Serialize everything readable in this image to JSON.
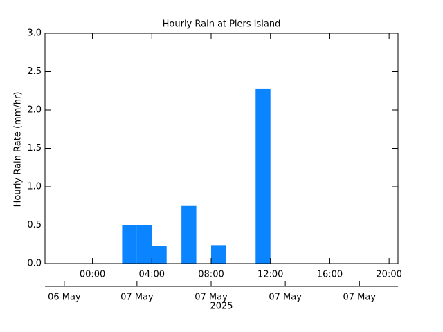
{
  "chart_data": {
    "type": "bar",
    "title": "Hourly Rain at Piers Island",
    "ylabel": "Hourly Rain Rate (mm/hr)",
    "x": [
      2,
      3,
      4,
      6,
      8,
      11
    ],
    "bar_width": 1,
    "values": [
      0.5,
      0.5,
      0.23,
      0.75,
      0.24,
      2.28
    ],
    "color": "#0a84ff",
    "xlim": [
      -3.2,
      20.6
    ],
    "xticks": [
      {
        "value": 0,
        "label": "00:00"
      },
      {
        "value": 4,
        "label": "04:00"
      },
      {
        "value": 8,
        "label": "08:00"
      },
      {
        "value": 12,
        "label": "12:00"
      },
      {
        "value": 16,
        "label": "16:00"
      },
      {
        "value": 20,
        "label": "20:00"
      }
    ],
    "x2ticks": [
      {
        "value": -1.9,
        "label": "06 May"
      },
      {
        "value": 3,
        "label": "07 May"
      },
      {
        "value": 8,
        "label": "07 May"
      },
      {
        "value": 13,
        "label": "07 May"
      },
      {
        "value": 18,
        "label": "07 May"
      }
    ],
    "x2label": "2025",
    "ylim": [
      0,
      3
    ],
    "yticks": [
      {
        "value": 0,
        "label": "0.0"
      },
      0.5,
      {
        "value": 1,
        "label": "1.0"
      },
      1.5,
      {
        "value": 2,
        "label": "2.0"
      },
      2.5,
      {
        "value": 3,
        "label": "3.0"
      }
    ]
  }
}
